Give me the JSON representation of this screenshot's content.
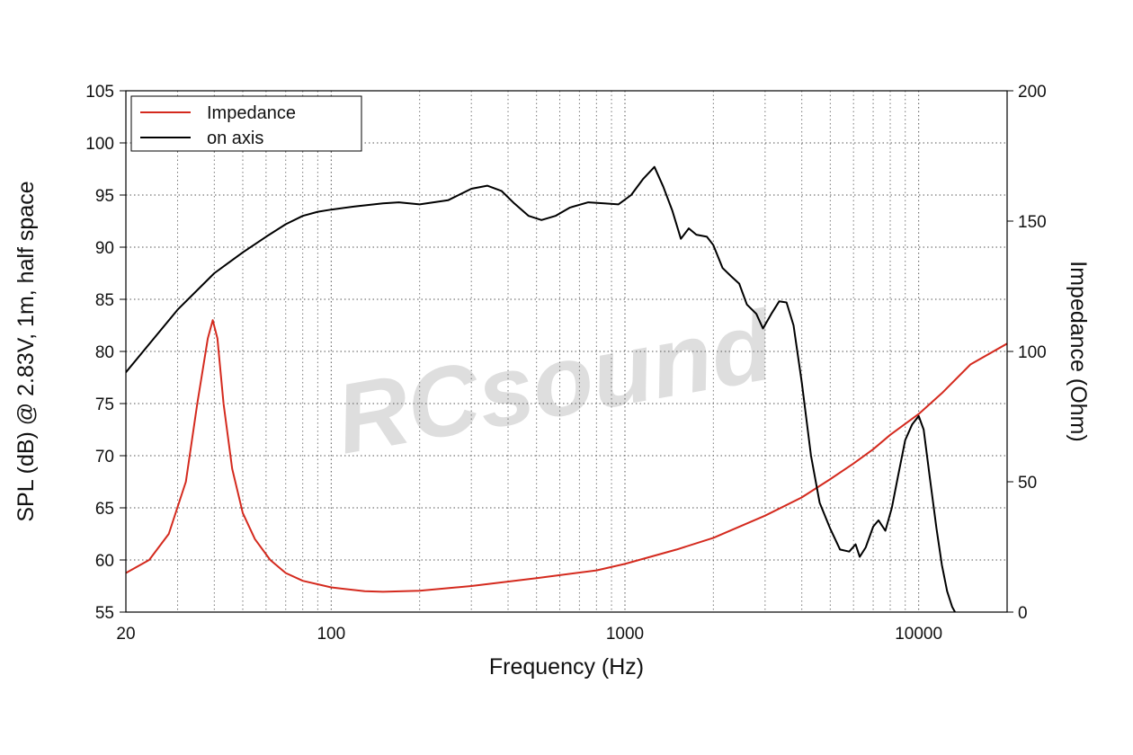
{
  "chart_data": {
    "type": "line",
    "title": "",
    "xlabel": "Frequency (Hz)",
    "ylabel_left": "SPL (dB) @ 2.83V, 1m, half space",
    "ylabel_right": "Impedance (Ohm)",
    "x_scale": "log",
    "xlim": [
      20,
      20000
    ],
    "ylim_left": [
      55,
      105
    ],
    "ylim_right": [
      0,
      200
    ],
    "x_ticks": [
      20,
      100,
      1000,
      10000
    ],
    "x_tick_labels": [
      "20",
      "100",
      "1000",
      "10000"
    ],
    "y_left_ticks": [
      55,
      60,
      65,
      70,
      75,
      80,
      85,
      90,
      95,
      100,
      105
    ],
    "y_left_tick_labels": [
      "55",
      "60",
      "65",
      "70",
      "75",
      "80",
      "85",
      "90",
      "95",
      "100",
      "105"
    ],
    "y_right_ticks": [
      0,
      50,
      100,
      150,
      200
    ],
    "y_right_tick_labels": [
      "0",
      "50",
      "100",
      "150",
      "200"
    ],
    "grid": true,
    "legend_position": "top-left",
    "watermark": "RCsound",
    "series": [
      {
        "name": "Impedance",
        "axis": "right",
        "color": "#d42a1e",
        "x": [
          20,
          24,
          28,
          32,
          35,
          38,
          39.5,
          41,
          43,
          46,
          50,
          55,
          62,
          70,
          80,
          100,
          130,
          150,
          200,
          300,
          500,
          800,
          1000,
          1500,
          2000,
          3000,
          4000,
          5000,
          6000,
          7000,
          8000,
          10000,
          12000,
          15000,
          20000
        ],
        "y": [
          15,
          20,
          30,
          50,
          80,
          105,
          112,
          105,
          80,
          55,
          38,
          28,
          20,
          15,
          12,
          9.5,
          8,
          7.8,
          8.2,
          10,
          13,
          16,
          18.5,
          24,
          28.5,
          37,
          44,
          51,
          57,
          62.5,
          68,
          76,
          84,
          95,
          103
        ]
      },
      {
        "name": "on axis",
        "axis": "left",
        "color": "#000000",
        "x": [
          20,
          30,
          40,
          50,
          60,
          70,
          80,
          90,
          100,
          120,
          150,
          170,
          200,
          250,
          300,
          340,
          380,
          420,
          470,
          520,
          580,
          650,
          750,
          850,
          950,
          1050,
          1150,
          1260,
          1350,
          1450,
          1550,
          1650,
          1750,
          1900,
          2000,
          2150,
          2300,
          2450,
          2600,
          2800,
          2950,
          3150,
          3350,
          3550,
          3750,
          4000,
          4300,
          4600,
          5000,
          5400,
          5800,
          6100,
          6300,
          6600,
          7000,
          7300,
          7700,
          8100,
          8500,
          9000,
          9500,
          10000,
          10400,
          10900,
          11500,
          12000,
          12500,
          13000,
          13600
        ],
        "y": [
          78,
          84,
          87.5,
          89.5,
          91,
          92.2,
          93,
          93.4,
          93.6,
          93.9,
          94.2,
          94.3,
          94.1,
          94.5,
          95.6,
          95.9,
          95.4,
          94.2,
          93,
          92.6,
          93,
          93.8,
          94.3,
          94.2,
          94.1,
          95,
          96.5,
          97.7,
          95.8,
          93.5,
          90.8,
          91.8,
          91.2,
          91,
          90.2,
          88,
          87.2,
          86.5,
          84.5,
          83.6,
          82.2,
          83.6,
          84.8,
          84.7,
          82.5,
          77,
          70,
          65.5,
          63,
          61,
          60.8,
          61.5,
          60.3,
          61.2,
          63.2,
          63.8,
          62.8,
          65,
          68,
          71.5,
          73,
          73.8,
          72.5,
          68,
          63,
          59.5,
          57,
          55.5,
          54.5
        ]
      }
    ]
  }
}
